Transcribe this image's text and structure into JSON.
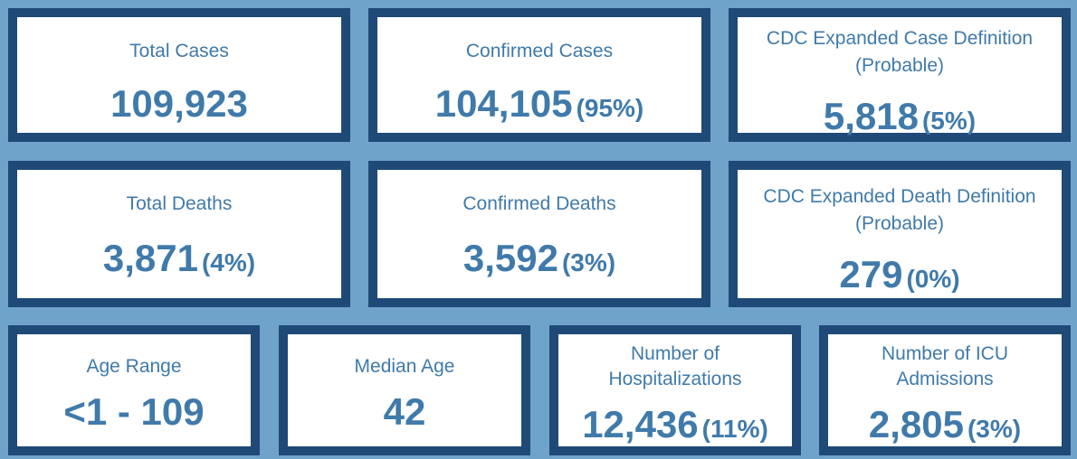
{
  "colors": {
    "background": "#6fa3c9",
    "card_border": "#1f4a78",
    "text": "#3f7aaa",
    "card_fill": "#ffffff"
  },
  "cards": {
    "total_cases": {
      "label": "Total Cases",
      "value": "109,923"
    },
    "confirmed_cases": {
      "label": "Confirmed Cases",
      "value": "104,105",
      "pct": "(95%)"
    },
    "probable_cases": {
      "label_line1": "CDC Expanded Case Definition",
      "label_line2": "(Probable)",
      "value": "5,818",
      "pct": "(5%)"
    },
    "total_deaths": {
      "label": "Total Deaths",
      "value": "3,871",
      "pct": "(4%)"
    },
    "confirmed_deaths": {
      "label": "Confirmed Deaths",
      "value": "3,592",
      "pct": "(3%)"
    },
    "probable_deaths": {
      "label_line1": "CDC Expanded Death Definition",
      "label_line2": "(Probable)",
      "value": "279",
      "pct": "(0%)"
    },
    "age_range": {
      "label": "Age Range",
      "value": "<1 - 109"
    },
    "median_age": {
      "label": "Median Age",
      "value": "42"
    },
    "hospitalizations": {
      "label_line1": "Number of",
      "label_line2": "Hospitalizations",
      "value": "12,436",
      "pct": "(11%)"
    },
    "icu_admissions": {
      "label_line1": "Number of ICU",
      "label_line2": "Admissions",
      "value": "2,805",
      "pct": "(3%)"
    }
  }
}
